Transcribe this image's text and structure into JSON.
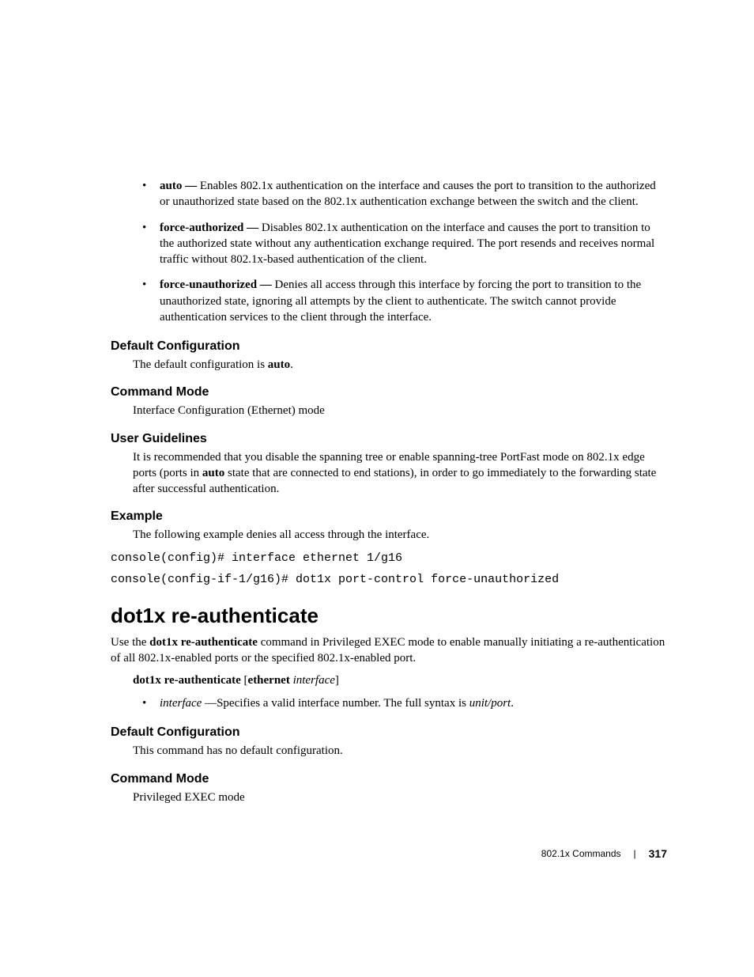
{
  "bullets_top": [
    {
      "term": "auto —",
      "text": " Enables 802.1x authentication on the interface and causes the port to transition to the authorized or unauthorized state based on the 802.1x authentication exchange between the switch and the client."
    },
    {
      "term": "force-authorized —",
      "text": " Disables 802.1x authentication on the interface and causes the port to transition to the authorized state without any authentication exchange required. The port resends and receives normal traffic without 802.1x-based authentication of the client."
    },
    {
      "term": "force-unauthorized —",
      "text": " Denies all access through this interface by forcing the port to transition to the unauthorized state, ignoring all attempts by the client to authenticate. The switch cannot provide authentication services to the client through the interface."
    }
  ],
  "default_config_1": {
    "heading": "Default Configuration",
    "prefix": "The default configuration is ",
    "bold": "auto",
    "suffix": "."
  },
  "command_mode_1": {
    "heading": "Command Mode",
    "text": "Interface Configuration (Ethernet) mode"
  },
  "user_guidelines": {
    "heading": "User Guidelines",
    "prefix": "It is recommended that you disable the spanning tree or enable spanning-tree PortFast mode on 802.1x edge ports (ports in ",
    "bold": "auto",
    "suffix": " state that are connected to end stations), in order to go immediately to the forwarding state after successful authentication."
  },
  "example": {
    "heading": "Example",
    "text": "The following example denies all access through the interface.",
    "code1": "console(config)# interface ethernet 1/g16",
    "code2": "console(config-if-1/g16)# dot1x port-control force-unauthorized"
  },
  "main_heading": "dot1x re-authenticate",
  "intro": {
    "prefix": "Use the ",
    "bold": "dot1x re-authenticate",
    "suffix": " command in Privileged EXEC mode to enable manually initiating a re-authentication of all 802.1x-enabled ports or the specified 802.1x-enabled port."
  },
  "syntax": {
    "bold1": "dot1x re-authenticate",
    "plain1": " [",
    "bold2": "ethernet",
    "plain2": " ",
    "italic": "interface",
    "plain3": "]"
  },
  "param_bullet": {
    "italic": "interface",
    "plain1": " —Specifies a valid interface number. The full syntax is ",
    "italic2": "unit/port",
    "plain2": "."
  },
  "default_config_2": {
    "heading": "Default Configuration",
    "text": "This command has no default configuration."
  },
  "command_mode_2": {
    "heading": "Command Mode",
    "text": "Privileged EXEC mode"
  },
  "footer": {
    "section": "802.1x Commands",
    "page": "317"
  }
}
